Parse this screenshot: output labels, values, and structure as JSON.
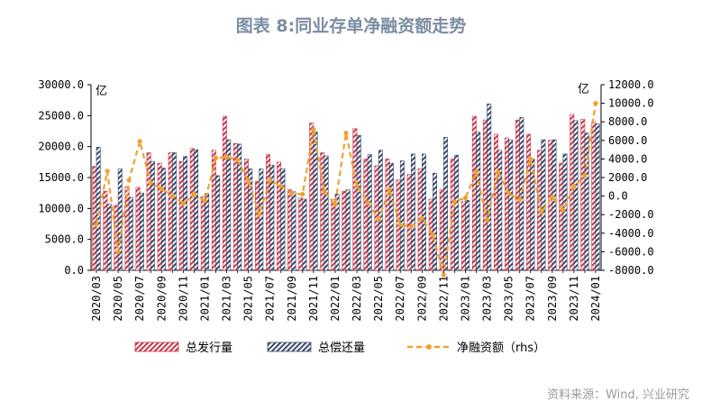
{
  "title": "图表 8:同业存单净融资额走势",
  "source": "资料来源：Wind, 兴业研究",
  "colors": {
    "issue": "#c8364a",
    "repay": "#3b4a6b",
    "net": "#f0a030"
  },
  "chart_data": {
    "type": "bar",
    "left_axis": {
      "unit": "亿",
      "ylim": [
        0,
        30000
      ],
      "ticks": [
        "30000.0",
        "25000.0",
        "20000.0",
        "15000.0",
        "10000.0",
        "5000.0",
        "0.0"
      ]
    },
    "right_axis": {
      "unit": "亿",
      "ylim": [
        -8000,
        12000
      ],
      "ticks": [
        "12000.0",
        "10000.0",
        "8000.0",
        "6000.0",
        "4000.0",
        "2000.0",
        "0.0",
        "-2000.0",
        "-4000.0",
        "-6000.0",
        "-8000.0"
      ]
    },
    "categories": [
      "2020/03",
      "2020/04",
      "2020/05",
      "2020/06",
      "2020/07",
      "2020/08",
      "2020/09",
      "2020/10",
      "2020/11",
      "2020/12",
      "2021/01",
      "2021/02",
      "2021/03",
      "2021/04",
      "2021/05",
      "2021/06",
      "2021/07",
      "2021/08",
      "2021/09",
      "2021/10",
      "2021/11",
      "2021/12",
      "2022/01",
      "2022/02",
      "2022/03",
      "2022/04",
      "2022/05",
      "2022/06",
      "2022/07",
      "2022/08",
      "2022/09",
      "2022/10",
      "2022/11",
      "2022/12",
      "2023/01",
      "2023/02",
      "2023/03",
      "2023/04",
      "2023/05",
      "2023/06",
      "2023/07",
      "2023/08",
      "2023/09",
      "2023/10",
      "2023/11",
      "2023/12",
      "2024/01"
    ],
    "x_tick_labels": [
      "2020/03",
      "2020/05",
      "2020/07",
      "2020/09",
      "2020/11",
      "2021/01",
      "2021/03",
      "2021/05",
      "2021/07",
      "2021/09",
      "2021/11",
      "2022/01",
      "2022/03",
      "2022/05",
      "2022/07",
      "2022/09",
      "2022/11",
      "2023/01",
      "2023/03",
      "2023/05",
      "2023/07",
      "2023/09",
      "2023/11",
      "2024/01"
    ],
    "series": [
      {
        "name": "总发行量",
        "axis": "left",
        "type": "bar",
        "values": [
          16800,
          12800,
          10500,
          13500,
          13400,
          19000,
          17300,
          19000,
          17600,
          19700,
          11900,
          19400,
          24900,
          20500,
          18000,
          14400,
          18700,
          17500,
          13000,
          11700,
          23800,
          19000,
          11400,
          12800,
          22900,
          18000,
          16900,
          18000,
          14600,
          15500,
          16400,
          11500,
          13000,
          18000,
          11100,
          24900,
          24300,
          22000,
          21400,
          24300,
          22000,
          19400,
          21000,
          17300,
          25200,
          24400,
          24000
        ]
      },
      {
        "name": "总偿还量",
        "axis": "left",
        "type": "bar",
        "values": [
          19900,
          10700,
          16400,
          11800,
          12500,
          17600,
          16500,
          19000,
          18400,
          19500,
          12400,
          15300,
          21100,
          20400,
          16400,
          16400,
          17000,
          16400,
          12700,
          11500,
          22400,
          18500,
          12300,
          13000,
          21800,
          18700,
          19400,
          17300,
          17700,
          18800,
          18800,
          15700,
          21500,
          18600,
          11300,
          22300,
          26900,
          19400,
          21100,
          24700,
          18000,
          21100,
          21100,
          18800,
          24200,
          22200,
          23700
        ]
      },
      {
        "name": "净融资额（rhs）",
        "axis": "right",
        "type": "line",
        "values": [
          -3100,
          2700,
          -6000,
          1700,
          5900,
          1400,
          800,
          0,
          -800,
          200,
          -500,
          4100,
          4200,
          3900,
          1600,
          -2000,
          1700,
          1100,
          300,
          200,
          7200,
          500,
          -900,
          6800,
          1100,
          -700,
          -2500,
          700,
          -3100,
          -3300,
          -2400,
          -4200,
          -8500,
          -600,
          -200,
          2600,
          -2600,
          2600,
          300,
          -400,
          4000,
          -1700,
          -100,
          -1500,
          1000,
          2200,
          10000
        ]
      }
    ]
  },
  "legend": [
    {
      "label": "总发行量",
      "swatch": "bar-issue"
    },
    {
      "label": "总偿还量",
      "swatch": "bar-repay"
    },
    {
      "label": "净融资额（rhs）",
      "swatch": "line-net"
    }
  ]
}
